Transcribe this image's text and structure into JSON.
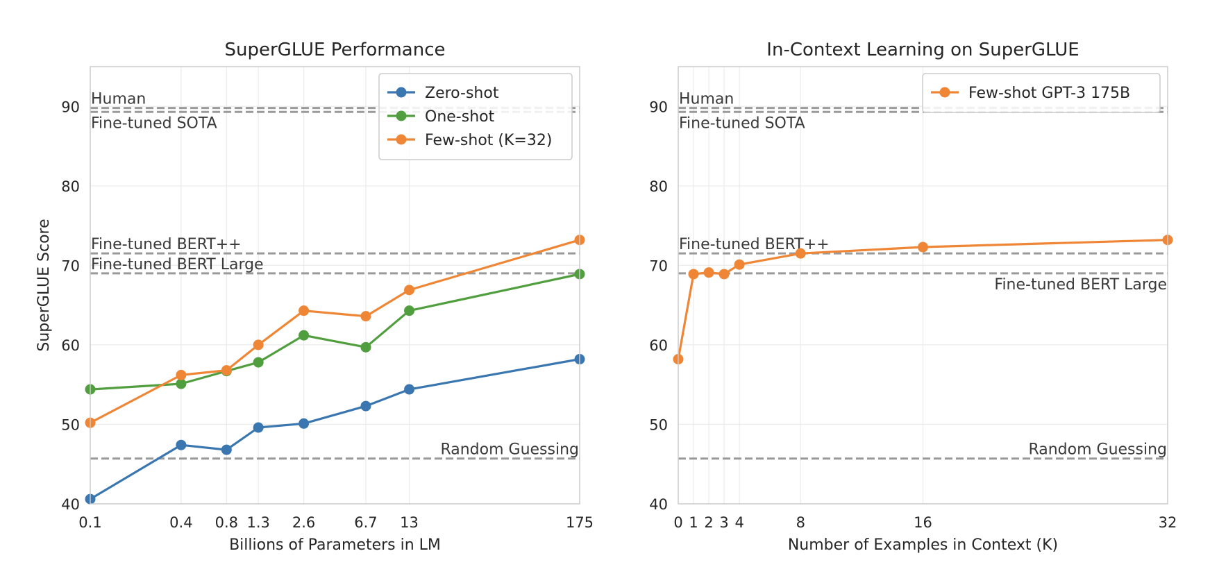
{
  "colors": {
    "zero_shot": "#3a76af",
    "one_shot": "#519e3e",
    "few_shot": "#ef8636",
    "reference_line": "#9a9a9a",
    "grid": "#ebebeb",
    "frame": "#cccccc"
  },
  "chart_data": [
    {
      "type": "line",
      "title": "SuperGLUE Performance",
      "xlabel": "Billions of Parameters in LM",
      "ylabel": "SuperGLUE Score",
      "x_scale": "log",
      "xlim": [
        0.1,
        175
      ],
      "ylim": [
        40,
        95
      ],
      "grid": true,
      "legend_position": "top-right",
      "x_ticks": [
        0.1,
        0.4,
        0.8,
        1.3,
        2.6,
        6.7,
        13,
        175
      ],
      "x_tick_labels": [
        "0.1",
        "0.4",
        "0.8",
        "1.3",
        "2.6",
        "6.7",
        "13",
        "175"
      ],
      "y_ticks": [
        40,
        50,
        60,
        70,
        80,
        90
      ],
      "y_tick_labels": [
        "40",
        "50",
        "60",
        "70",
        "80",
        "90"
      ],
      "x": [
        0.1,
        0.4,
        0.8,
        1.3,
        2.6,
        6.7,
        13,
        175
      ],
      "series": [
        {
          "name": "Zero-shot",
          "color_key": "zero_shot",
          "values": [
            40.6,
            47.4,
            46.8,
            49.6,
            50.1,
            52.3,
            54.4,
            58.2
          ]
        },
        {
          "name": "One-shot",
          "color_key": "one_shot",
          "values": [
            54.4,
            55.1,
            56.7,
            57.8,
            61.2,
            59.7,
            64.3,
            68.9
          ]
        },
        {
          "name": "Few-shot (K=32)",
          "color_key": "few_shot",
          "values": [
            50.2,
            56.2,
            56.8,
            60.0,
            64.3,
            63.6,
            66.9,
            73.2
          ]
        }
      ],
      "reference_lines": [
        {
          "label": "Human",
          "value": 89.8,
          "label_side": "left",
          "label_pos": "above"
        },
        {
          "label": "Fine-tuned SOTA",
          "value": 89.3,
          "label_side": "left",
          "label_pos": "below"
        },
        {
          "label": "Fine-tuned BERT++",
          "value": 71.5,
          "label_side": "left",
          "label_pos": "above"
        },
        {
          "label": "Fine-tuned BERT Large",
          "value": 69.0,
          "label_side": "left",
          "label_pos": "above"
        },
        {
          "label": "Random Guessing",
          "value": 45.7,
          "label_side": "right",
          "label_pos": "above"
        }
      ]
    },
    {
      "type": "line",
      "title": "In-Context Learning on SuperGLUE",
      "xlabel": "Number of Examples in Context (K)",
      "ylabel": "",
      "x_scale": "linear",
      "xlim": [
        0,
        32
      ],
      "ylim": [
        40,
        95
      ],
      "grid": true,
      "legend_position": "top-right",
      "x_ticks": [
        0,
        1,
        2,
        3,
        4,
        8,
        16,
        32
      ],
      "x_tick_labels": [
        "0",
        "1",
        "2",
        "3",
        "4",
        "8",
        "16",
        "32"
      ],
      "y_ticks": [
        40,
        50,
        60,
        70,
        80,
        90
      ],
      "y_tick_labels": [
        "40",
        "50",
        "60",
        "70",
        "80",
        "90"
      ],
      "x": [
        0,
        1,
        2,
        3,
        4,
        8,
        16,
        32
      ],
      "series": [
        {
          "name": "Few-shot GPT-3 175B",
          "color_key": "few_shot",
          "values": [
            58.2,
            68.9,
            69.1,
            68.9,
            70.1,
            71.5,
            72.3,
            73.2
          ]
        }
      ],
      "reference_lines": [
        {
          "label": "Human",
          "value": 89.8,
          "label_side": "left",
          "label_pos": "above"
        },
        {
          "label": "Fine-tuned SOTA",
          "value": 89.3,
          "label_side": "left",
          "label_pos": "below"
        },
        {
          "label": "Fine-tuned BERT++",
          "value": 71.5,
          "label_side": "left",
          "label_pos": "above"
        },
        {
          "label": "Fine-tuned BERT Large",
          "value": 69.0,
          "label_side": "right",
          "label_pos": "below"
        },
        {
          "label": "Random Guessing",
          "value": 45.7,
          "label_side": "right",
          "label_pos": "above"
        }
      ]
    }
  ]
}
